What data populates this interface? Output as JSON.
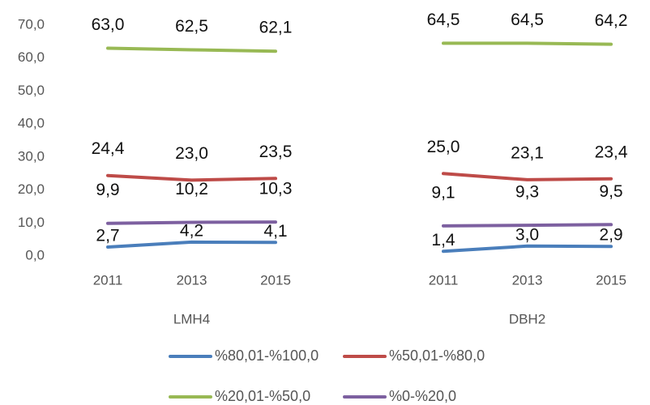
{
  "chart_data": {
    "type": "line",
    "categories": [
      "2011",
      "2013",
      "2015",
      null,
      "2011",
      "2013",
      "2015"
    ],
    "groups": [
      "LMH4",
      "DBH2"
    ],
    "series": [
      {
        "name": "%80,01-%100,0",
        "color": "#4a7ebb",
        "values": [
          2.7,
          4.2,
          4.1,
          null,
          1.4,
          3.0,
          2.9
        ],
        "value_labels": [
          "2,7",
          "4,2",
          "4,1",
          null,
          "1,4",
          "3,0",
          "2,9"
        ]
      },
      {
        "name": "%50,01-%80,0",
        "color": "#be4b48",
        "values": [
          24.4,
          23.0,
          23.5,
          null,
          25.0,
          23.1,
          23.4
        ],
        "value_labels": [
          "24,4",
          "23,0",
          "23,5",
          null,
          "25,0",
          "23,1",
          "23,4"
        ]
      },
      {
        "name": "%20,01-%50,0",
        "color": "#98b954",
        "values": [
          63.0,
          62.5,
          62.1,
          null,
          64.5,
          64.5,
          64.2
        ],
        "value_labels": [
          "63,0",
          "62,5",
          "62,1",
          null,
          "64,5",
          "64,5",
          "64,2"
        ]
      },
      {
        "name": "%0-%20,0",
        "color": "#7d60a0",
        "values": [
          9.9,
          10.2,
          10.3,
          null,
          9.1,
          9.3,
          9.5
        ],
        "value_labels": [
          "9,9",
          "10,2",
          "10,3",
          null,
          "9,1",
          "9,3",
          "9,5"
        ]
      }
    ],
    "ylim": [
      0,
      70
    ],
    "yticks": [
      {
        "value": 0,
        "label": "0,0"
      },
      {
        "value": 10,
        "label": "10,0"
      },
      {
        "value": 20,
        "label": "20,0"
      },
      {
        "value": 30,
        "label": "30,0"
      },
      {
        "value": 40,
        "label": "40,0"
      },
      {
        "value": 50,
        "label": "50,0"
      },
      {
        "value": 60,
        "label": "60,0"
      },
      {
        "value": 70,
        "label": "70,0"
      }
    ],
    "grid": false
  }
}
